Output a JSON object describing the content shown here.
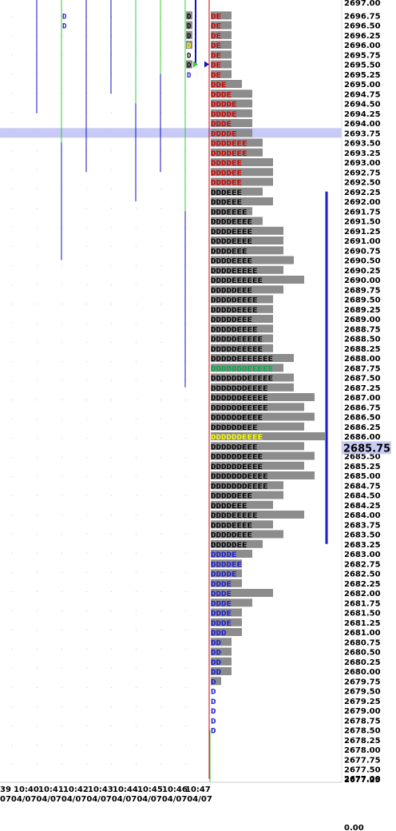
{
  "colors": {
    "background": "#ffffff",
    "bar": "#8c8c8c",
    "red_letter": "#cc0000",
    "blue_letter": "#1a1ad0",
    "black_letter": "#000000",
    "green_letter": "#00aa44",
    "poc_letter": "#ffff00",
    "highlight": "#b3b8f0",
    "green_line": "#33cc33",
    "blue_line": "#1010c0",
    "value_area": "#1a1ad0",
    "current_box": "#c8ccf5"
  },
  "current_price_label": "2685.75",
  "bottom_value": "0.00",
  "chart_data": {
    "type": "market-profile",
    "price_axis": {
      "min": 2677.25,
      "max": 2697.0,
      "step": 0.25,
      "top_cut_label": "2697.00",
      "bottom_cut_label": "2677.00"
    },
    "time_labels_top": [
      "39",
      "10:40",
      "10:41",
      "10:42",
      "10:43",
      "10:44",
      "10:45",
      "10:46",
      "10:47"
    ],
    "time_labels_bottom": "0704/0704/0704/0704/0704/0704/0704/0704/07",
    "highlight_price": 2693.75,
    "current_price": 2685.75,
    "value_area": {
      "high": 2692.25,
      "low": 2683.25
    },
    "minute_bars": [
      {
        "time": "10:40",
        "high": 2697.0,
        "low": 2694.25,
        "color": "blue"
      },
      {
        "time": "10:41",
        "high": 2697.0,
        "low": 2693.5,
        "color": "green"
      },
      {
        "time": "10:41",
        "high": 2693.5,
        "low": 2690.5,
        "color": "blue"
      },
      {
        "time": "10:42",
        "high": 2697.0,
        "low": 2692.75,
        "color": "blue"
      },
      {
        "time": "10:43",
        "high": 2697.0,
        "low": 2694.75,
        "color": "blue"
      },
      {
        "time": "10:44",
        "high": 2697.0,
        "low": 2694.5,
        "color": "green"
      },
      {
        "time": "10:44",
        "high": 2694.5,
        "low": 2692.0,
        "color": "blue"
      },
      {
        "time": "10:45",
        "high": 2697.0,
        "low": 2695.25,
        "color": "green"
      },
      {
        "time": "10:45",
        "high": 2695.25,
        "low": 2692.75,
        "color": "blue"
      },
      {
        "time": "10:46",
        "high": 2697.0,
        "low": 2691.75,
        "color": "green"
      },
      {
        "time": "10:46",
        "high": 2691.75,
        "low": 2687.25,
        "color": "blue"
      }
    ],
    "top_markers": [
      {
        "label": "D",
        "price": 2696.75,
        "color": "blue"
      },
      {
        "label": "D",
        "price": 2696.5,
        "color": "blue"
      }
    ],
    "period_letters": [
      {
        "label": "D",
        "price": 2696.75,
        "style": "black-on-gray"
      },
      {
        "label": "D",
        "price": 2696.5,
        "style": "black-on-gray"
      },
      {
        "label": "D",
        "price": 2696.25,
        "style": "black-on-gray"
      },
      {
        "label": "D",
        "price": 2696.0,
        "style": "yellow-on-gray"
      },
      {
        "label": "D",
        "price": 2695.75,
        "style": "black"
      },
      {
        "label": "D",
        "price": 2695.5,
        "style": "black-on-gray"
      },
      {
        "label": "D",
        "price": 2695.25,
        "style": "blue"
      }
    ],
    "profile": [
      {
        "price": 2696.75,
        "letters": "DE",
        "bar": 2,
        "color": "red"
      },
      {
        "price": 2696.5,
        "letters": "DE",
        "bar": 2,
        "color": "red"
      },
      {
        "price": 2696.25,
        "letters": "DE",
        "bar": 2,
        "color": "red"
      },
      {
        "price": 2696.0,
        "letters": "DE",
        "bar": 2,
        "color": "red"
      },
      {
        "price": 2695.75,
        "letters": "DE",
        "bar": 2,
        "color": "red"
      },
      {
        "price": 2695.5,
        "letters": "DE",
        "bar": 2,
        "color": "red"
      },
      {
        "price": 2695.25,
        "letters": "DE",
        "bar": 2,
        "color": "red"
      },
      {
        "price": 2695.0,
        "letters": "DDE",
        "bar": 3,
        "color": "red"
      },
      {
        "price": 2694.75,
        "letters": "DDDE",
        "bar": 4,
        "color": "red"
      },
      {
        "price": 2694.5,
        "letters": "DDDDE",
        "bar": 4,
        "color": "red"
      },
      {
        "price": 2694.25,
        "letters": "DDDDE",
        "bar": 4,
        "color": "red"
      },
      {
        "price": 2694.0,
        "letters": "DDDE",
        "bar": 4,
        "color": "red"
      },
      {
        "price": 2693.75,
        "letters": "DDDDE",
        "bar": 4,
        "color": "red"
      },
      {
        "price": 2693.5,
        "letters": "DDDDEEE",
        "bar": 5,
        "color": "red"
      },
      {
        "price": 2693.25,
        "letters": "DDDDEEE",
        "bar": 5,
        "color": "red"
      },
      {
        "price": 2693.0,
        "letters": "DDDDEE",
        "bar": 6,
        "color": "red"
      },
      {
        "price": 2692.75,
        "letters": "DDDDEE",
        "bar": 6,
        "color": "red"
      },
      {
        "price": 2692.5,
        "letters": "DDDDEE",
        "bar": 6,
        "color": "red"
      },
      {
        "price": 2692.25,
        "letters": "DDDEEE",
        "bar": 5,
        "color": "black"
      },
      {
        "price": 2692.0,
        "letters": "DDDEEE",
        "bar": 6,
        "color": "black"
      },
      {
        "price": 2691.75,
        "letters": "DDDEEEE",
        "bar": 4,
        "color": "black"
      },
      {
        "price": 2691.5,
        "letters": "DDDDEEEE",
        "bar": 5,
        "color": "black"
      },
      {
        "price": 2691.25,
        "letters": "DDDDEEEE",
        "bar": 7,
        "color": "black"
      },
      {
        "price": 2691.0,
        "letters": "DDDDEEEE",
        "bar": 7,
        "color": "black"
      },
      {
        "price": 2690.75,
        "letters": "DDDDEEE",
        "bar": 7,
        "color": "black"
      },
      {
        "price": 2690.5,
        "letters": "DDDDEEEE",
        "bar": 8,
        "color": "black"
      },
      {
        "price": 2690.25,
        "letters": "DDDDEEEEE",
        "bar": 7,
        "color": "black"
      },
      {
        "price": 2690.0,
        "letters": "DDDDEEEEEE",
        "bar": 9,
        "color": "black"
      },
      {
        "price": 2689.75,
        "letters": "DDDDDEEE",
        "bar": 7,
        "color": "black"
      },
      {
        "price": 2689.5,
        "letters": "DDDDDEEEE",
        "bar": 6,
        "color": "black"
      },
      {
        "price": 2689.25,
        "letters": "DDDDDEEEE",
        "bar": 6,
        "color": "black"
      },
      {
        "price": 2689.0,
        "letters": "DDDDDEEE",
        "bar": 6,
        "color": "black"
      },
      {
        "price": 2688.75,
        "letters": "DDDDDEEEE",
        "bar": 6,
        "color": "black"
      },
      {
        "price": 2688.5,
        "letters": "DDDDDEEEEE",
        "bar": 6,
        "color": "black"
      },
      {
        "price": 2688.25,
        "letters": "DDDDDEEEEE",
        "bar": 6,
        "color": "black"
      },
      {
        "price": 2688.0,
        "letters": "DDDDDEEEEEEE",
        "bar": 8,
        "color": "black"
      },
      {
        "price": 2687.75,
        "letters": "DDDDDDDEEEEE",
        "bar": 7,
        "color": "green"
      },
      {
        "price": 2687.5,
        "letters": "DDDDDDDEEEEE",
        "bar": 8,
        "color": "black"
      },
      {
        "price": 2687.25,
        "letters": "DDDDDDDEEEE",
        "bar": 8,
        "color": "black"
      },
      {
        "price": 2687.0,
        "letters": "DDDDDDEEEEE",
        "bar": 10,
        "color": "black"
      },
      {
        "price": 2686.75,
        "letters": "DDDDDDEEEEE",
        "bar": 9,
        "color": "black"
      },
      {
        "price": 2686.5,
        "letters": "DDDDDDEEEE",
        "bar": 10,
        "color": "black"
      },
      {
        "price": 2686.25,
        "letters": "DDDDDDEEE",
        "bar": 9,
        "color": "black"
      },
      {
        "price": 2686.0,
        "letters": "DDDDDDEEEE",
        "bar": 11,
        "color": "yellow"
      },
      {
        "price": 2685.75,
        "letters": "DDDDDDEEE",
        "bar": 9,
        "color": "black"
      },
      {
        "price": 2685.5,
        "letters": "DDDDDDEEEE",
        "bar": 10,
        "color": "black"
      },
      {
        "price": 2685.25,
        "letters": "DDDDDDEEEE",
        "bar": 9,
        "color": "black"
      },
      {
        "price": 2685.0,
        "letters": "DDDDDDDEEEE",
        "bar": 10,
        "color": "black"
      },
      {
        "price": 2684.75,
        "letters": "DDDDDDDEEEE",
        "bar": 7,
        "color": "black"
      },
      {
        "price": 2684.5,
        "letters": "DDDDDEEE",
        "bar": 7,
        "color": "black"
      },
      {
        "price": 2684.25,
        "letters": "DDDDEEE",
        "bar": 6,
        "color": "black"
      },
      {
        "price": 2684.0,
        "letters": "DDDDEEEEE",
        "bar": 9,
        "color": "black"
      },
      {
        "price": 2683.75,
        "letters": "DDDDEEEE",
        "bar": 6,
        "color": "black"
      },
      {
        "price": 2683.5,
        "letters": "DDDDDEEE",
        "bar": 7,
        "color": "black"
      },
      {
        "price": 2683.25,
        "letters": "DDDDDEE",
        "bar": 5,
        "color": "black"
      },
      {
        "price": 2683.0,
        "letters": "DDDDE",
        "bar": 4,
        "color": "blue"
      },
      {
        "price": 2682.75,
        "letters": "DDDDEE",
        "bar": 3,
        "color": "blue"
      },
      {
        "price": 2682.5,
        "letters": "DDDDE",
        "bar": 3,
        "color": "blue"
      },
      {
        "price": 2682.25,
        "letters": "DDDE",
        "bar": 3,
        "color": "blue"
      },
      {
        "price": 2682.0,
        "letters": "DDDE",
        "bar": 6,
        "color": "blue"
      },
      {
        "price": 2681.75,
        "letters": "DDDE",
        "bar": 4,
        "color": "blue"
      },
      {
        "price": 2681.5,
        "letters": "DDDE",
        "bar": 3,
        "color": "blue"
      },
      {
        "price": 2681.25,
        "letters": "DDDE",
        "bar": 3,
        "color": "blue"
      },
      {
        "price": 2681.0,
        "letters": "DDD",
        "bar": 3,
        "color": "blue"
      },
      {
        "price": 2680.75,
        "letters": "DD",
        "bar": 2,
        "color": "blue"
      },
      {
        "price": 2680.5,
        "letters": "DD",
        "bar": 2,
        "color": "blue"
      },
      {
        "price": 2680.25,
        "letters": "DD",
        "bar": 2,
        "color": "blue"
      },
      {
        "price": 2680.0,
        "letters": "DD",
        "bar": 2,
        "color": "blue"
      },
      {
        "price": 2679.75,
        "letters": "D",
        "bar": 1,
        "color": "blue"
      },
      {
        "price": 2679.5,
        "letters": "D",
        "bar": 0,
        "color": "blue"
      },
      {
        "price": 2679.25,
        "letters": "D",
        "bar": 0,
        "color": "blue"
      },
      {
        "price": 2679.0,
        "letters": "D",
        "bar": 0,
        "color": "blue"
      },
      {
        "price": 2678.75,
        "letters": "D",
        "bar": 0,
        "color": "blue"
      },
      {
        "price": 2678.5,
        "letters": "D",
        "bar": 0,
        "color": "blue"
      }
    ]
  }
}
